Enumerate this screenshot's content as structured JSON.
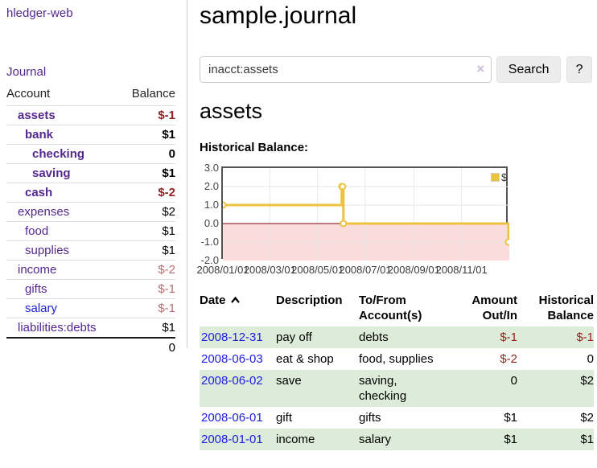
{
  "colors": {
    "link_purple": "#54278e",
    "link_blue": "#1d1de0",
    "negative_strong": "#941f1f",
    "negative_soft": "#bc6c6c",
    "row_stripe_green": "#ddecd9",
    "chart_line": "#edc240",
    "chart_negative_fill": "#fbdcdc",
    "chart_zero_line": "#7e0404",
    "chart_border": "#545454",
    "chart_grid": "#e6e6e6"
  },
  "sidebar": {
    "app_title": "hledger-web",
    "journal_link": "Journal",
    "table": {
      "account_header": "Account",
      "balance_header": "Balance",
      "rows": [
        {
          "account": "assets",
          "level": 0,
          "bold": true,
          "link": "purple",
          "balance": "$-1",
          "balance_style": "neg"
        },
        {
          "account": "bank",
          "level": 1,
          "bold": true,
          "link": "purple",
          "balance": "$1",
          "balance_style": "pos"
        },
        {
          "account": "checking",
          "level": 2,
          "bold": true,
          "link": "purple",
          "balance": "0",
          "balance_style": "pos"
        },
        {
          "account": "saving",
          "level": 2,
          "bold": true,
          "link": "purple",
          "balance": "$1",
          "balance_style": "pos"
        },
        {
          "account": "cash",
          "level": 1,
          "bold": true,
          "link": "purple",
          "balance": "$-2",
          "balance_style": "neg"
        },
        {
          "account": "expenses",
          "level": 0,
          "bold": false,
          "link": "purple",
          "balance": "$2",
          "balance_style": "pos"
        },
        {
          "account": "food",
          "level": 1,
          "bold": false,
          "link": "purple",
          "balance": "$1",
          "balance_style": "pos"
        },
        {
          "account": "supplies",
          "level": 1,
          "bold": false,
          "link": "purple",
          "balance": "$1",
          "balance_style": "pos"
        },
        {
          "account": "income",
          "level": 0,
          "bold": false,
          "link": "purple",
          "balance": "$-2",
          "balance_style": "neg-soft"
        },
        {
          "account": "gifts",
          "level": 1,
          "bold": false,
          "link": "purple",
          "balance": "$-1",
          "balance_style": "neg-soft"
        },
        {
          "account": "salary",
          "level": 1,
          "bold": false,
          "link": "blue",
          "balance": "$-1",
          "balance_style": "neg-soft"
        },
        {
          "account": "liabilities:debts",
          "level": 0,
          "bold": false,
          "link": "purple",
          "balance": "$1",
          "balance_style": "pos"
        }
      ],
      "total": "0"
    }
  },
  "main": {
    "title": "sample.journal",
    "search": {
      "value": "inacct:assets",
      "clear_icon": "×",
      "button_label": "Search",
      "help_label": "?"
    },
    "account_heading": "assets",
    "chart_section_label": "Historical Balance:"
  },
  "chart_data": {
    "type": "line",
    "title": "Historical Balance",
    "step": true,
    "ylim": [
      -2,
      3
    ],
    "xlim_days": [
      0,
      366
    ],
    "grid": true,
    "legend": {
      "label": "$",
      "position": "top-right"
    },
    "y_ticks": [
      {
        "label": "3.0",
        "value": 3
      },
      {
        "label": "2.0",
        "value": 2
      },
      {
        "label": "1.0",
        "value": 1
      },
      {
        "label": "0.0",
        "value": 0
      },
      {
        "label": "-1.0",
        "value": -1
      },
      {
        "label": "-2.0",
        "value": -2
      }
    ],
    "x_ticks": [
      {
        "label": "2008/01/01",
        "day": 0
      },
      {
        "label": "2008/03/01",
        "day": 60
      },
      {
        "label": "2008/05/01",
        "day": 121
      },
      {
        "label": "2008/07/01",
        "day": 182
      },
      {
        "label": "2008/09/01",
        "day": 244
      },
      {
        "label": "2008/11/01",
        "day": 305
      }
    ],
    "series": [
      {
        "name": "$",
        "points": [
          {
            "date": "2008-01-01",
            "day": 0,
            "value": 1
          },
          {
            "date": "2008-06-01",
            "day": 152,
            "value": 2
          },
          {
            "date": "2008-06-02",
            "day": 153,
            "value": 2
          },
          {
            "date": "2008-06-03",
            "day": 154,
            "value": 0
          },
          {
            "date": "2008-12-31",
            "day": 365,
            "value": -1
          }
        ]
      }
    ]
  },
  "register": {
    "headers": {
      "date": "Date",
      "description": "Description",
      "accounts": "To/From Account(s)",
      "amount": "Amount Out/In",
      "balance": "Historical Balance"
    },
    "rows": [
      {
        "date": "2008-12-31",
        "description": "pay off",
        "accounts": "debts",
        "amount": "$-1",
        "amount_neg": true,
        "balance": "$-1",
        "balance_neg": true
      },
      {
        "date": "2008-06-03",
        "description": "eat & shop",
        "accounts": "food, supplies",
        "amount": "$-2",
        "amount_neg": true,
        "balance": "0",
        "balance_neg": false
      },
      {
        "date": "2008-06-02",
        "description": "save",
        "accounts": "saving, checking",
        "amount": "0",
        "amount_neg": false,
        "balance": "$2",
        "balance_neg": false
      },
      {
        "date": "2008-06-01",
        "description": "gift",
        "accounts": "gifts",
        "amount": "$1",
        "amount_neg": false,
        "balance": "$2",
        "balance_neg": false
      },
      {
        "date": "2008-01-01",
        "description": "income",
        "accounts": "salary",
        "amount": "$1",
        "amount_neg": false,
        "balance": "$1",
        "balance_neg": false
      }
    ]
  }
}
